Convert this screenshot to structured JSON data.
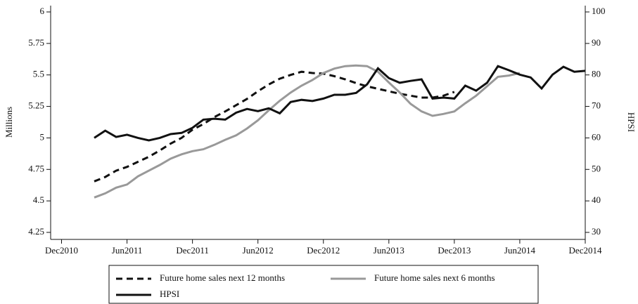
{
  "chart_data": {
    "type": "line",
    "x": [
      "Mar2011",
      "Apr2011",
      "May2011",
      "Jun2011",
      "Jul2011",
      "Aug2011",
      "Sep2011",
      "Oct2011",
      "Nov2011",
      "Dec2011",
      "Jan2012",
      "Feb2012",
      "Mar2012",
      "Apr2012",
      "May2012",
      "Jun2012",
      "Jul2012",
      "Aug2012",
      "Sep2012",
      "Oct2012",
      "Nov2012",
      "Dec2012",
      "Jan2013",
      "Feb2013",
      "Mar2013",
      "Apr2013",
      "May2013",
      "Jun2013",
      "Jul2013",
      "Aug2013",
      "Sep2013",
      "Oct2013",
      "Nov2013",
      "Dec2013",
      "Jan2014",
      "Feb2014",
      "Mar2014",
      "Apr2014",
      "May2014",
      "Jun2014",
      "Jul2014",
      "Aug2014",
      "Sep2014",
      "Oct2014",
      "Nov2014",
      "Dec2014"
    ],
    "xlim": [
      "Nov2010",
      "Dec2014"
    ],
    "xticks": [
      "Dec2010",
      "Jun2011",
      "Dec2011",
      "Jun2012",
      "Dec2012",
      "Jun2013",
      "Dec2013",
      "Jun2014",
      "Dec2014"
    ],
    "y_label": "Millions",
    "y2_label": "HPSI",
    "ylim": [
      4.25,
      6
    ],
    "yticks": [
      4.25,
      4.5,
      4.75,
      5,
      5.25,
      5.5,
      5.75,
      6
    ],
    "y2lim": [
      30,
      100
    ],
    "y2ticks": [
      30,
      40,
      50,
      60,
      70,
      80,
      90,
      100
    ],
    "legend": "bottom",
    "series": [
      {
        "name": "Future home sales next 12 months",
        "color": "#111111",
        "line_style": "dashed",
        "values": [
          4.655,
          4.69,
          4.74,
          4.77,
          4.81,
          4.85,
          4.9,
          4.955,
          5.0,
          5.065,
          5.11,
          5.165,
          5.21,
          5.26,
          5.31,
          5.37,
          5.425,
          5.47,
          5.5,
          5.525,
          5.515,
          5.51,
          5.49,
          5.465,
          5.435,
          5.41,
          5.39,
          5.37,
          5.35,
          5.335,
          5.32,
          5.32,
          5.335,
          5.365,
          null,
          null,
          null,
          null,
          null,
          null,
          null,
          null,
          null,
          null,
          null,
          null
        ]
      },
      {
        "name": "Future home sales next 6 months",
        "color": "#999999",
        "line_style": "solid",
        "values": [
          4.527,
          4.56,
          4.605,
          4.63,
          4.695,
          4.74,
          4.785,
          4.835,
          4.87,
          4.895,
          4.91,
          4.945,
          4.985,
          5.02,
          5.075,
          5.14,
          5.22,
          5.295,
          5.36,
          5.415,
          5.46,
          5.515,
          5.55,
          5.57,
          5.575,
          5.57,
          5.525,
          5.44,
          5.36,
          5.27,
          5.21,
          5.175,
          5.19,
          5.21,
          5.275,
          5.335,
          5.41,
          5.485,
          5.495,
          5.515,
          null,
          null,
          null,
          null,
          null,
          null
        ]
      },
      {
        "name": "HPSI",
        "color": "#111111",
        "line_style": "solid",
        "axis": "y2",
        "values": [
          60,
          62.3,
          60.3,
          61,
          60,
          59.2,
          60,
          61.2,
          61.6,
          63.2,
          65.8,
          66.1,
          65.8,
          68,
          69.2,
          68.5,
          69.4,
          67.8,
          71.4,
          72.1,
          71.7,
          72.5,
          73.7,
          73.7,
          74.3,
          77,
          82.1,
          79,
          77.5,
          78.1,
          78.6,
          72.5,
          72.8,
          72.5,
          76.6,
          75,
          77.5,
          82.8,
          81.5,
          80.1,
          79.2,
          75.7,
          80.1,
          82.6,
          81,
          81.3
        ]
      }
    ]
  }
}
